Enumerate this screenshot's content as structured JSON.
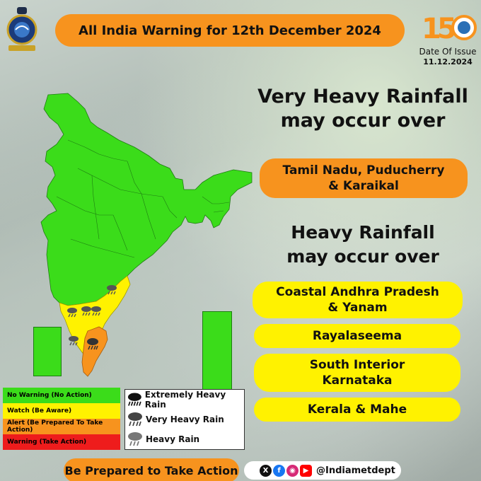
{
  "header": {
    "title": "All India Warning for 12th December 2024",
    "anniversary_number": "150",
    "date_label": "Date Of Issue",
    "date_value": "11.12.2024"
  },
  "very_heavy": {
    "heading_line1": "Very Heavy Rainfall",
    "heading_line2": "may occur over",
    "regions": [
      {
        "line1": "Tamil Nadu, Puducherry",
        "line2": "& Karaikal"
      }
    ]
  },
  "heavy": {
    "heading_line1": "Heavy Rainfall",
    "heading_line2": "may occur over",
    "regions": [
      {
        "line1": "Coastal Andhra Pradesh",
        "line2": "& Yanam"
      },
      {
        "line1": "Rayalaseema",
        "line2": ""
      },
      {
        "line1": "South Interior",
        "line2": "Karnataka"
      },
      {
        "line1": "Kerala & Mahe",
        "line2": ""
      }
    ]
  },
  "legend": {
    "levels": [
      {
        "label": "No Warning (No Action)",
        "color": "#3bdc1a",
        "text_color": "#111111"
      },
      {
        "label": "Watch (Be Aware)",
        "color": "#fff200",
        "text_color": "#111111"
      },
      {
        "label": "Alert (Be Prepared To Take Action)",
        "color": "#f7931e",
        "text_color": "#111111"
      },
      {
        "label": "Warning (Take Action)",
        "color": "#ee1c1c",
        "text_color": "#111111"
      }
    ],
    "rain_types": [
      {
        "label": "Extremely Heavy Rain",
        "icon": "extremely-heavy-rain-icon"
      },
      {
        "label": "Very Heavy Rain",
        "icon": "very-heavy-rain-icon"
      },
      {
        "label": "Heavy Rain",
        "icon": "heavy-rain-icon"
      }
    ]
  },
  "footer": {
    "cta": "Be Prepared to Take Action",
    "handle": "@Indiametdept",
    "social_icons": [
      "x-icon",
      "facebook-icon",
      "instagram-icon",
      "youtube-icon"
    ]
  },
  "colors": {
    "green": "#3bdc1a",
    "yellow": "#fff200",
    "orange": "#f7931e",
    "red": "#ee1c1c"
  }
}
